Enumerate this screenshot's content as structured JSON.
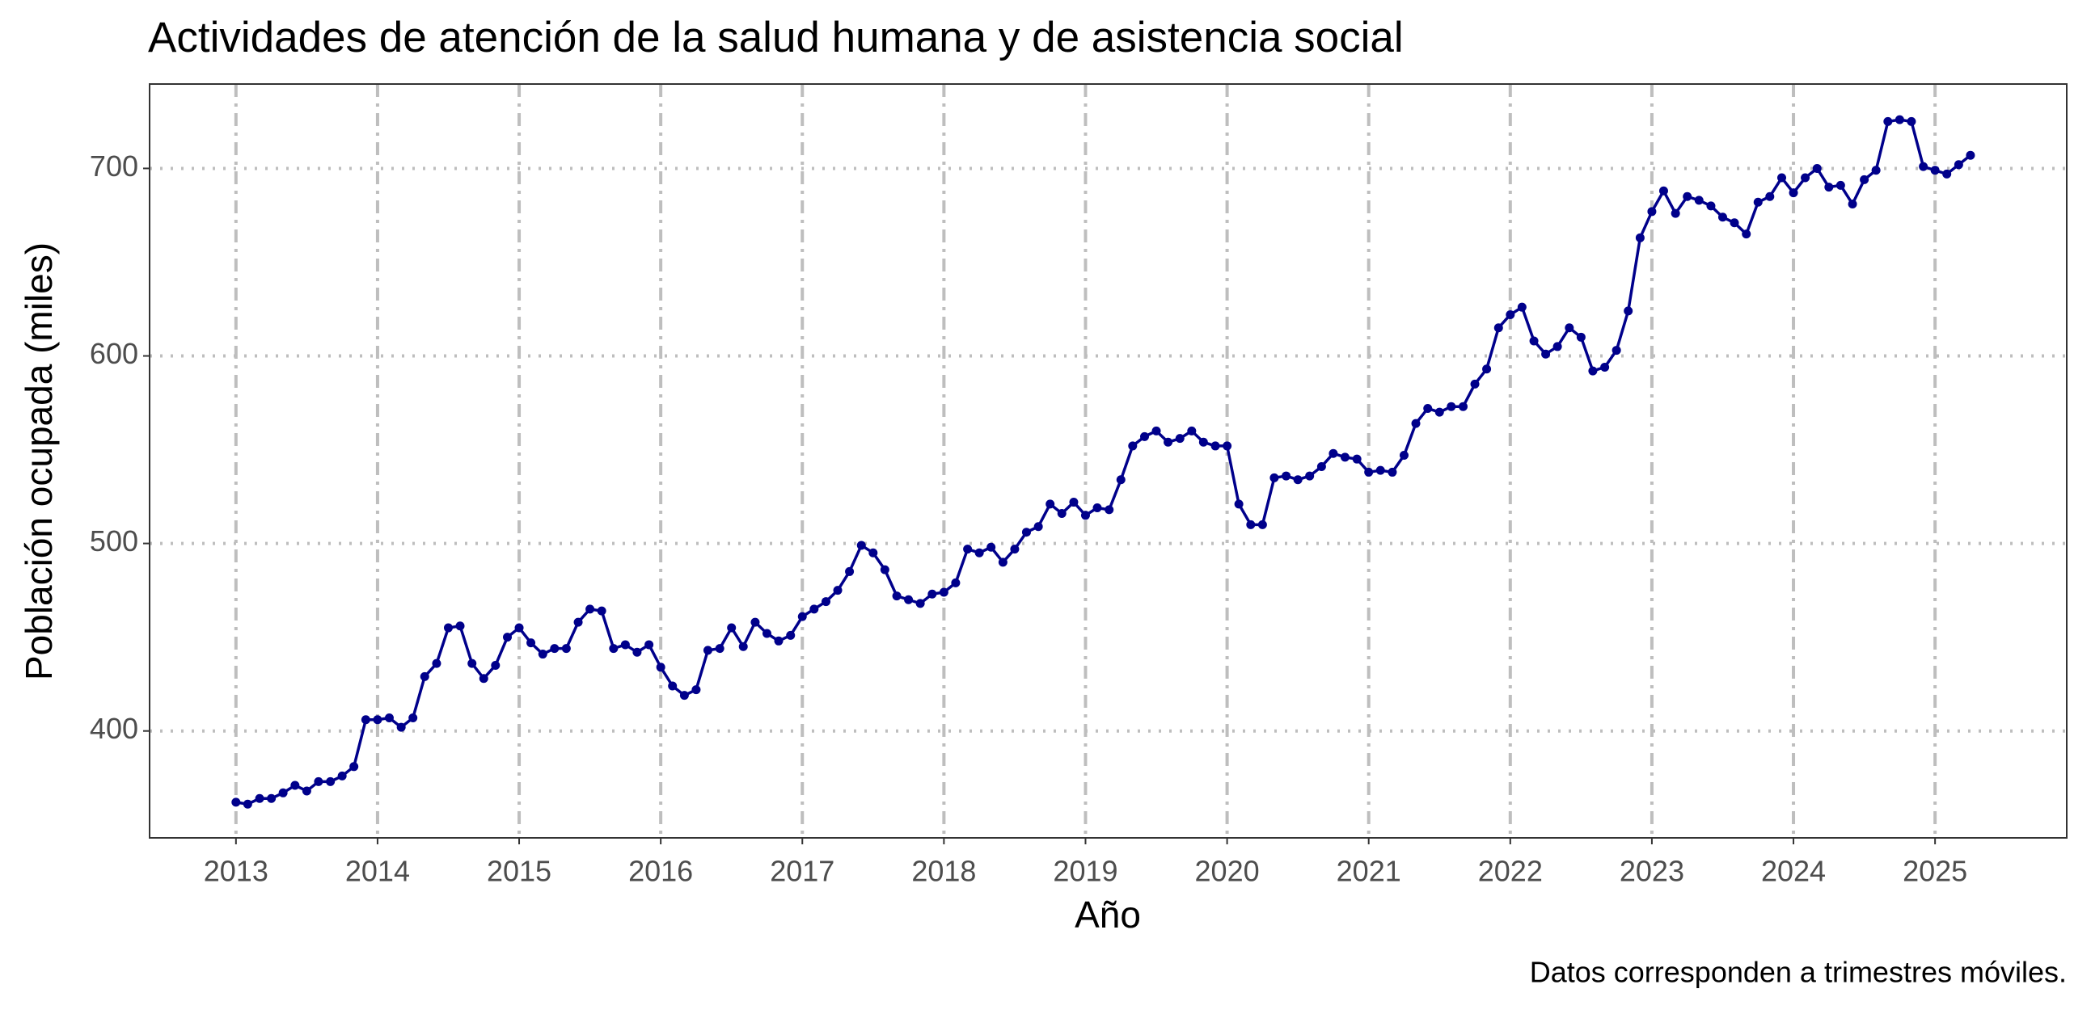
{
  "chart_data": {
    "type": "line",
    "title": "Actividades de atención de la salud humana y de asistencia social",
    "x_label": "Año",
    "y_label": "Población ocupada (miles)",
    "caption": "Datos corresponden a trimestres móviles.",
    "x": [
      2013,
      2013.083,
      2013.167,
      2013.25,
      2013.333,
      2013.417,
      2013.5,
      2013.583,
      2013.667,
      2013.75,
      2013.833,
      2013.917,
      2014,
      2014.083,
      2014.167,
      2014.25,
      2014.333,
      2014.417,
      2014.5,
      2014.583,
      2014.667,
      2014.75,
      2014.833,
      2014.917,
      2015,
      2015.083,
      2015.167,
      2015.25,
      2015.333,
      2015.417,
      2015.5,
      2015.583,
      2015.667,
      2015.75,
      2015.833,
      2015.917,
      2016,
      2016.083,
      2016.167,
      2016.25,
      2016.333,
      2016.417,
      2016.5,
      2016.583,
      2016.667,
      2016.75,
      2016.833,
      2016.917,
      2017,
      2017.083,
      2017.167,
      2017.25,
      2017.333,
      2017.417,
      2017.5,
      2017.583,
      2017.667,
      2017.75,
      2017.833,
      2017.917,
      2018,
      2018.083,
      2018.167,
      2018.25,
      2018.333,
      2018.417,
      2018.5,
      2018.583,
      2018.667,
      2018.75,
      2018.833,
      2018.917,
      2019,
      2019.083,
      2019.167,
      2019.25,
      2019.333,
      2019.417,
      2019.5,
      2019.583,
      2019.667,
      2019.75,
      2019.833,
      2019.917,
      2020,
      2020.083,
      2020.167,
      2020.25,
      2020.333,
      2020.417,
      2020.5,
      2020.583,
      2020.667,
      2020.75,
      2020.833,
      2020.917,
      2021,
      2021.083,
      2021.167,
      2021.25,
      2021.333,
      2021.417,
      2021.5,
      2021.583,
      2021.667,
      2021.75,
      2021.833,
      2021.917,
      2022,
      2022.083,
      2022.167,
      2022.25,
      2022.333,
      2022.417,
      2022.5,
      2022.583,
      2022.667,
      2022.75,
      2022.833,
      2022.917,
      2023,
      2023.083,
      2023.167,
      2023.25,
      2023.333,
      2023.417,
      2023.5,
      2023.583,
      2023.667,
      2023.75,
      2023.833,
      2023.917,
      2024,
      2024.083,
      2024.167,
      2024.25,
      2024.333,
      2024.417,
      2024.5,
      2024.583,
      2024.667,
      2024.75,
      2024.833,
      2024.917,
      2025,
      2025.083,
      2025.167,
      2025.25
    ],
    "series": [
      {
        "color": "#00008b",
        "values": [
          362,
          361,
          364,
          364,
          367,
          371,
          368,
          373,
          373,
          376,
          381,
          406,
          406,
          407,
          402,
          407,
          429,
          436,
          455,
          456,
          436,
          428,
          435,
          450,
          455,
          447,
          441,
          444,
          444,
          458,
          465,
          464,
          444,
          446,
          442,
          446,
          434,
          424,
          419,
          422,
          443,
          444,
          455,
          445,
          458,
          452,
          448,
          451,
          461,
          465,
          469,
          475,
          485,
          499,
          495,
          486,
          472,
          470,
          468,
          473,
          474,
          479,
          497,
          495,
          498,
          490,
          497,
          506,
          509,
          521,
          516,
          522,
          515,
          519,
          518,
          534,
          552,
          557,
          560,
          554,
          556,
          560,
          554,
          552,
          552,
          521,
          510,
          510,
          535,
          536,
          534,
          536,
          541,
          548,
          546,
          545,
          538,
          539,
          538,
          547,
          564,
          572,
          570,
          573,
          573,
          585,
          593,
          615,
          622,
          626,
          608,
          601,
          605,
          615,
          610,
          592,
          594,
          603,
          624,
          663,
          677,
          688,
          676,
          685,
          683,
          680,
          674,
          671,
          665,
          682,
          685,
          695,
          687,
          695,
          700,
          690,
          691,
          681,
          694,
          699,
          725,
          726,
          725,
          701,
          699,
          697,
          702,
          707
        ]
      }
    ],
    "xlim": [
      2012.39,
      2025.93
    ],
    "ylim": [
      343,
      745
    ],
    "xticks": [
      2013,
      2014,
      2015,
      2016,
      2017,
      2018,
      2019,
      2020,
      2021,
      2022,
      2023,
      2024,
      2025
    ],
    "yticks": [
      400,
      500,
      600,
      700
    ],
    "grid": true
  }
}
